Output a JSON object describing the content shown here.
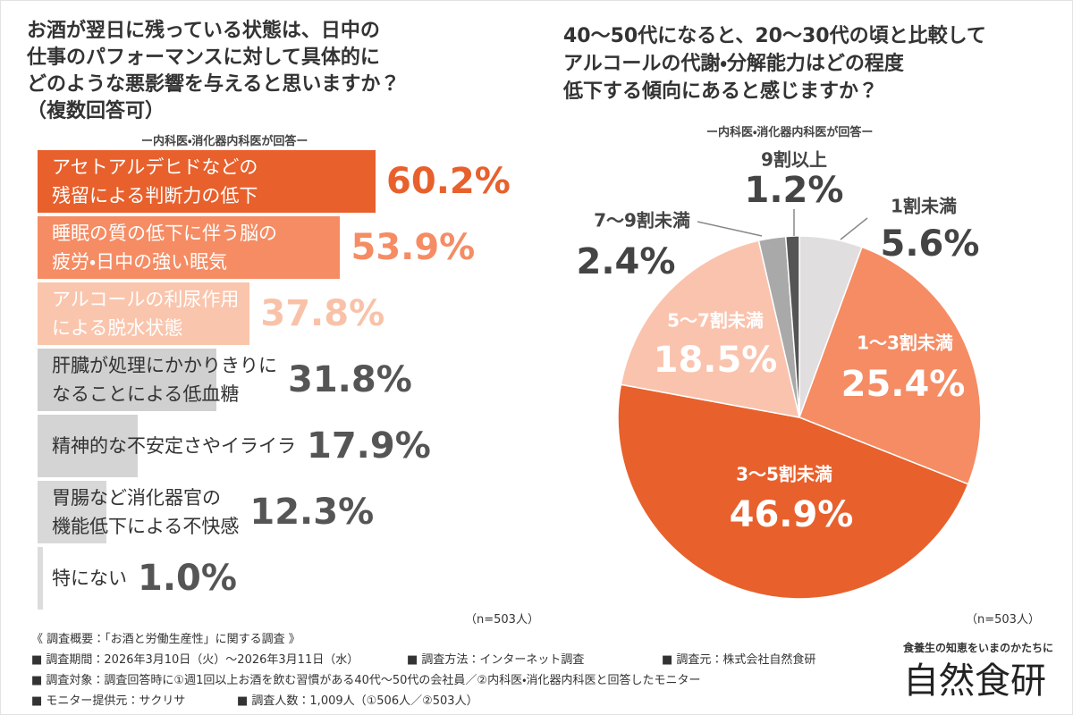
{
  "chart_data": [
    {
      "type": "bar",
      "orientation": "horizontal",
      "title": [
        "お酒が翌日に残っている状態は、日中の",
        "仕事のパフォーマンスに対して具体的に",
        "どのような悪影響を与えると思いますか？",
        "（複数回答可）"
      ],
      "subtitle": "ー内科医・消化器内科医が回答ー",
      "note": "（n=503人）",
      "categories": [
        "アセトアルデヒドなどの\n残留による判断力の低下",
        "睡眠の質の低下に伴う脳の\n疲労・日中の強い眠気",
        "アルコールの利尿作用\nによる脱水状態",
        "肝臓が処理にかかりきりに\nなることによる低血糖",
        "精神的な不安定さやイライラ",
        "胃腸など消化器官の\n機能低下による不快感",
        "特にない"
      ],
      "values": [
        60.2,
        53.9,
        37.8,
        31.8,
        17.9,
        12.3,
        1
      ],
      "value_labels": [
        "60.2%",
        "53.9%",
        "37.8%",
        "31.8%",
        "17.9%",
        "12.3%",
        "1.0%"
      ],
      "colors": [
        "#e8602c",
        "#f58c64",
        "#fac5ad",
        "#d0d0d0",
        "#d4d4d4",
        "#d8d8d8",
        "#dcdcdc"
      ],
      "category_colors": [
        "#ffffff",
        "#ffffff",
        "#ffffff",
        "#333333",
        "#333333",
        "#333333",
        "#333333"
      ],
      "value_label_colors": [
        "#e8602c",
        "#f58c64",
        "#f9c2a8",
        "#555555",
        "#555555",
        "#555555",
        "#555555"
      ]
    },
    {
      "type": "pie",
      "title": [
        "40〜50代になると、20〜30代の頃と比較して",
        "アルコールの代謝・分解能力はどの程度",
        "低下する傾向にあると感じますか？"
      ],
      "subtitle": "ー内科医・消化器内科医が回答ー",
      "note": "（n=503人）",
      "categories": [
        "1割未満",
        "1〜3割未満",
        "3〜5割未満",
        "5〜7割未満",
        "7〜9割未満",
        "9割以上"
      ],
      "values": [
        5.6,
        25.4,
        46.9,
        18.5,
        2.4,
        1.2
      ],
      "value_labels": [
        "5.6%",
        "25.4%",
        "46.9%",
        "18.5%",
        "2.4%",
        "1.2%"
      ],
      "colors": [
        "#e0dede",
        "#f58c64",
        "#e8602c",
        "#fac3ad",
        "#a9a9a9",
        "#555555"
      ],
      "label_colors": [
        "#444444",
        "#ffffff",
        "#ffffff",
        "#ffffff",
        "#444444",
        "#444444"
      ]
    }
  ],
  "footer": {
    "notes": [
      [
        "《 調査概要：「お酒と労働生産性」に関する調査 》"
      ],
      [
        "■ 調査期間：2026年3月10日（火）〜2026年3月11日（水）",
        "■ 調査方法：インターネット調査",
        "■ 調査元：株式会社自然食研"
      ],
      [
        "■ 調査対象：調査回答時に①週1回以上お酒を飲む習慣がある40代〜50代の会社員／②内科医・消化器内科医と回答したモニター"
      ],
      [
        "■ モニター提供元：サクリサ",
        "■ 調査人数：1,009人（①506人／②503人）"
      ]
    ],
    "tagline": "食養生の知恵をいまのかたちに",
    "brand": "自然食研"
  }
}
